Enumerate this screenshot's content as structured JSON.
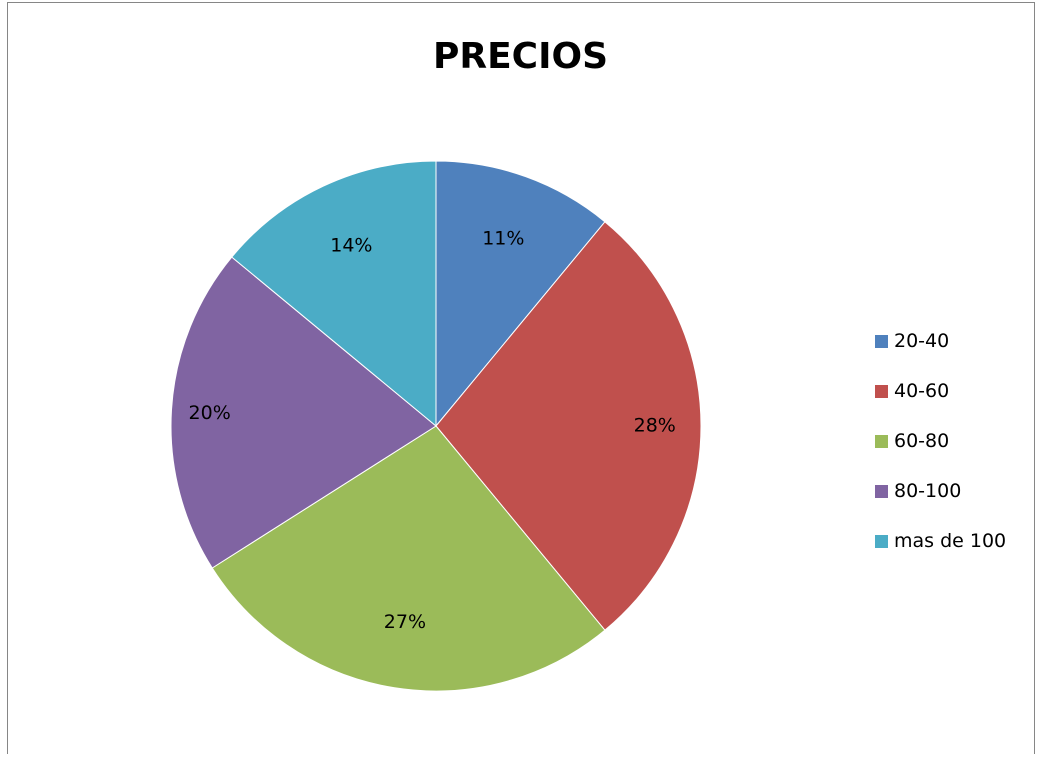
{
  "chart_data": {
    "type": "pie",
    "title": "PRECIOS",
    "categories": [
      "20-40",
      "40-60",
      "60-80",
      "80-100",
      "mas de 100"
    ],
    "values": [
      11,
      28,
      27,
      20,
      14
    ],
    "labels": [
      "11%",
      "28%",
      "27%",
      "20%",
      "14%"
    ],
    "colors": [
      "#4F81BD",
      "#C0504D",
      "#9BBB59",
      "#8064A2",
      "#4BACC6"
    ],
    "start_angle": "12 o'clock",
    "direction": "clockwise",
    "legend": {
      "position": "right"
    }
  }
}
